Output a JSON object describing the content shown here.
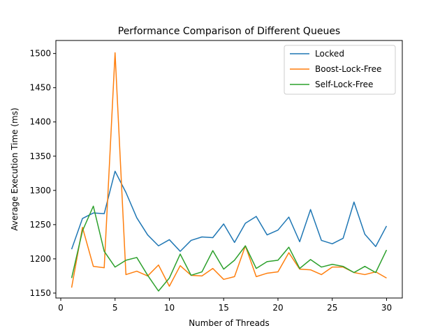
{
  "chart_data": {
    "type": "line",
    "title": "Performance Comparison of Different Queues",
    "xlabel": "Number of Threads",
    "ylabel": "Average Execution Time (ms)",
    "xlim": [
      -0.45,
      31.45
    ],
    "ylim": [
      1142.8,
      1519.0
    ],
    "xticks": [
      0,
      5,
      10,
      15,
      20,
      25,
      30
    ],
    "yticks": [
      1150,
      1200,
      1250,
      1300,
      1350,
      1400,
      1450,
      1500
    ],
    "grid": false,
    "legend_position": "top-right",
    "x": [
      1,
      2,
      3,
      4,
      5,
      6,
      7,
      8,
      9,
      10,
      11,
      12,
      13,
      14,
      15,
      16,
      17,
      18,
      19,
      20,
      21,
      22,
      23,
      24,
      25,
      26,
      27,
      28,
      29,
      30
    ],
    "series": [
      {
        "name": "Locked",
        "color": "#1f77b4",
        "values": [
          1214,
          1259,
          1267,
          1266,
          1328,
          1297,
          1260,
          1235,
          1219,
          1228,
          1211,
          1227,
          1232,
          1231,
          1251,
          1224,
          1252,
          1262,
          1235,
          1242,
          1261,
          1225,
          1272,
          1227,
          1222,
          1230,
          1283,
          1236,
          1218,
          1248
        ]
      },
      {
        "name": "Boost-Lock-Free",
        "color": "#ff7f0e",
        "values": [
          1158,
          1246,
          1189,
          1187,
          1501,
          1177,
          1182,
          1175,
          1191,
          1160,
          1190,
          1176,
          1175,
          1186,
          1170,
          1174,
          1219,
          1174,
          1179,
          1181,
          1209,
          1185,
          1184,
          1177,
          1188,
          1188,
          1180,
          1177,
          1181,
          1172
        ]
      },
      {
        "name": "Self-Lock-Free",
        "color": "#2ca02c",
        "values": [
          1172,
          1241,
          1277,
          1211,
          1188,
          1198,
          1202,
          1176,
          1153,
          1172,
          1207,
          1176,
          1181,
          1212,
          1185,
          1198,
          1219,
          1186,
          1196,
          1198,
          1217,
          1186,
          1199,
          1188,
          1192,
          1189,
          1180,
          1189,
          1180,
          1213
        ]
      }
    ]
  }
}
